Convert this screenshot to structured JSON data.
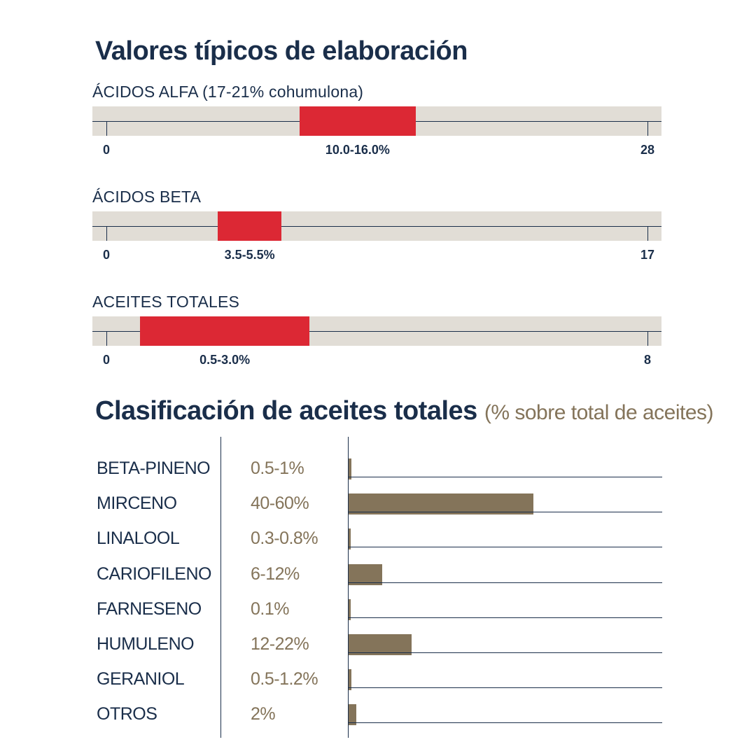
{
  "main_title": "Valores típicos de elaboración",
  "ranges": [
    {
      "label": "ÁCIDOS ALFA (17-21% cohumulona)",
      "min_label": "0",
      "max_label": "28",
      "scale_max": 28,
      "low": 10.0,
      "high": 16.0,
      "value_label": "10.0-16.0%"
    },
    {
      "label": "ÁCIDOS BETA",
      "min_label": "0",
      "max_label": "17",
      "scale_max": 17,
      "low": 3.5,
      "high": 5.5,
      "value_label": "3.5-5.5%"
    },
    {
      "label": "ACEITES TOTALES",
      "min_label": "0",
      "max_label": "8",
      "scale_max": 8,
      "low": 0.5,
      "high": 3.0,
      "value_label": "0.5-3.0%"
    }
  ],
  "oil_section": {
    "title": "Clasificación de aceites totales",
    "subtitle": "(% sobre total de aceites)"
  },
  "colors": {
    "navy": "#1a2e4a",
    "red": "#dc2834",
    "track": "#e1ddd6",
    "brown": "#84745a"
  },
  "chart_data": [
    {
      "type": "bar",
      "title": "Valores típicos de elaboración",
      "orientation": "horizontal-range",
      "categories": [
        "ÁCIDOS ALFA (17-21% cohumulona)",
        "ÁCIDOS BETA",
        "ACEITES TOTALES"
      ],
      "series": [
        {
          "values": [
            [
              10.0,
              16.0
            ],
            [
              3.5,
              5.5
            ],
            [
              0.5,
              3.0
            ]
          ]
        }
      ],
      "axis_ranges": [
        [
          0,
          28
        ],
        [
          0,
          17
        ],
        [
          0,
          8
        ]
      ],
      "data_labels": [
        "10.0-16.0%",
        "3.5-5.5%",
        "0.5-3.0%"
      ]
    },
    {
      "type": "bar",
      "title": "Clasificación de aceites totales",
      "subtitle": "(% sobre total de aceites)",
      "orientation": "horizontal",
      "categories": [
        "BETA-PINENO",
        "MIRCENO",
        "LINALOOL",
        "CARIOFILENO",
        "FARNESENO",
        "HUMULENO",
        "GERANIOL",
        "OTROS"
      ],
      "labels": [
        "0.5-1%",
        "40-60%",
        "0.3-0.8%",
        "6-12%",
        "0.1%",
        "12-22%",
        "0.5-1.2%",
        "2%"
      ],
      "series": [
        {
          "values": [
            0.75,
            50,
            0.55,
            9,
            0.1,
            17,
            0.85,
            2
          ]
        }
      ],
      "xlim": [
        0,
        100
      ],
      "grid": false
    }
  ]
}
